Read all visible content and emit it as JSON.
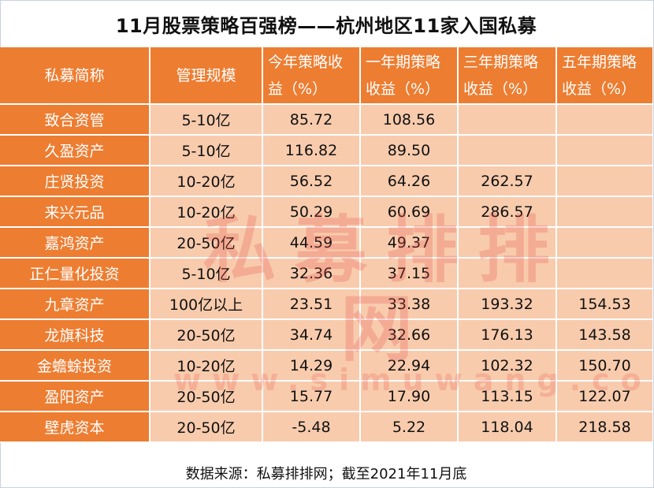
{
  "title": "11月股票策略百强榜——杭州地区11家入国私募",
  "table": {
    "headers": [
      "私募简称",
      "管理规模",
      "今年策略收益（%）",
      "一年期策略收益（%）",
      "三年期策略收益（%）",
      "五年期策略收益（%）"
    ],
    "rows": [
      [
        "致合资管",
        "5-10亿",
        "85.72",
        "108.56",
        "",
        ""
      ],
      [
        "久盈资产",
        "5-10亿",
        "116.82",
        "89.50",
        "",
        ""
      ],
      [
        "庄贤投资",
        "10-20亿",
        "56.52",
        "64.26",
        "262.57",
        ""
      ],
      [
        "来兴元品",
        "10-20亿",
        "50.29",
        "60.69",
        "286.57",
        ""
      ],
      [
        "嘉鸿资产",
        "20-50亿",
        "44.59",
        "49.37",
        "",
        ""
      ],
      [
        "正仁量化投资",
        "5-10亿",
        "32.36",
        "37.15",
        "",
        ""
      ],
      [
        "九章资产",
        "100亿以上",
        "23.51",
        "33.38",
        "193.32",
        "154.53"
      ],
      [
        "龙旗科技",
        "20-50亿",
        "34.74",
        "32.66",
        "176.13",
        "143.58"
      ],
      [
        "金蟾蜍投资",
        "10-20亿",
        "14.29",
        "22.94",
        "102.32",
        "150.70"
      ],
      [
        "盈阳资产",
        "20-50亿",
        "15.77",
        "17.90",
        "113.15",
        "122.07"
      ],
      [
        "壁虎资本",
        "20-50亿",
        "-5.48",
        "5.22",
        "118.04",
        "218.58"
      ]
    ]
  },
  "footer": "数据来源：私募排排网；截至2021年11月底",
  "watermark": {
    "main": "私募排排网",
    "url": "www.simuwang.com"
  },
  "colors": {
    "header_bg": "#ed7d31",
    "cell_bg": "#f8cbad",
    "border": "#ffffff"
  }
}
